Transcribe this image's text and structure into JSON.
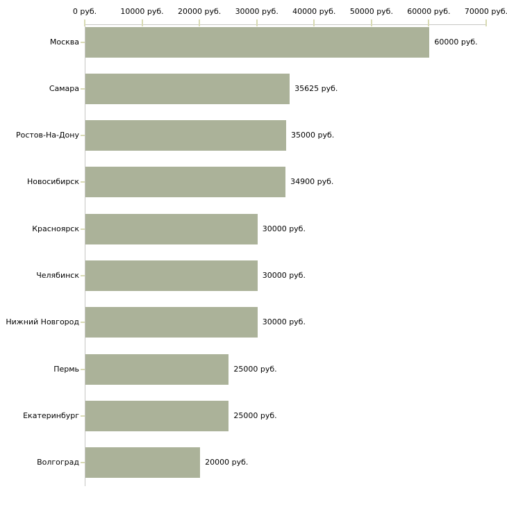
{
  "chart_data": {
    "type": "bar",
    "orientation": "horizontal",
    "title": "",
    "xlabel": "",
    "ylabel": "",
    "unit": "руб.",
    "xlim": [
      0,
      70000
    ],
    "x_tick_labels": [
      "0 руб.",
      "10000 руб.",
      "20000 руб.",
      "30000 руб.",
      "40000 руб.",
      "50000 руб.",
      "60000 руб.",
      "70000 руб."
    ],
    "categories": [
      "Москва",
      "Самара",
      "Ростов-На-Дону",
      "Новосибирск",
      "Красноярск",
      "Челябинск",
      "Нижний Новгород",
      "Пермь",
      "Екатеринбург",
      "Волгоград"
    ],
    "values": [
      60000,
      35625,
      35000,
      34900,
      30000,
      30000,
      30000,
      25000,
      25000,
      20000
    ],
    "value_labels": [
      "60000 руб.",
      "35625 руб.",
      "35000 руб.",
      "34900 руб.",
      "30000 руб.",
      "30000 руб.",
      "30000 руб.",
      "25000 руб.",
      "25000 руб.",
      "20000 руб."
    ],
    "grid": false,
    "legend": false,
    "colors": {
      "bar": "#abb299",
      "axis_line": "#c6c6c3",
      "tick": "#d8dab3",
      "text": "#000000",
      "background": "#ffffff"
    }
  }
}
